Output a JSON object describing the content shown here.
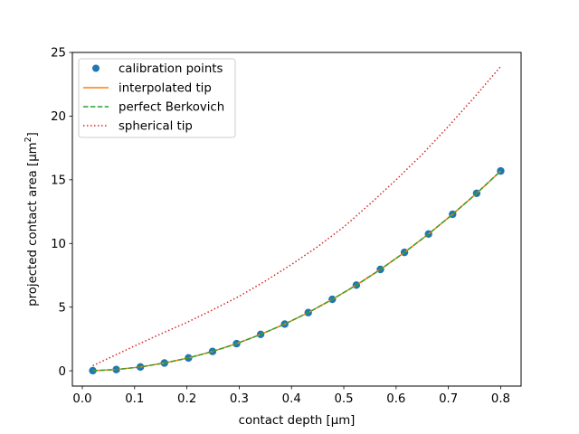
{
  "chart_data": {
    "type": "line",
    "title": "",
    "xlabel": "contact depth [μm]",
    "ylabel_main": "projected contact area [μm",
    "ylabel_sup": "2",
    "ylabel_end": "]",
    "xlim": [
      -0.019,
      0.839
    ],
    "ylim": [
      -1.2,
      25
    ],
    "xticks": [
      0.0,
      0.1,
      0.2,
      0.3,
      0.4,
      0.5,
      0.6,
      0.7,
      0.8
    ],
    "xtick_labels": [
      "0.0",
      "0.1",
      "0.2",
      "0.3",
      "0.4",
      "0.5",
      "0.6",
      "0.7",
      "0.8"
    ],
    "yticks": [
      0,
      5,
      10,
      15,
      20,
      25
    ],
    "ytick_labels": [
      "0",
      "5",
      "10",
      "15",
      "20",
      "25"
    ],
    "grid": false,
    "legend_position": "top-left",
    "series": [
      {
        "name": "calibration points",
        "style": "markers",
        "color": "#1f77b4",
        "x": [
          0.02,
          0.065,
          0.111,
          0.157,
          0.203,
          0.249,
          0.295,
          0.341,
          0.387,
          0.432,
          0.478,
          0.524,
          0.57,
          0.616,
          0.662,
          0.708,
          0.754,
          0.8
        ],
        "y": [
          0.01,
          0.1,
          0.3,
          0.61,
          1.01,
          1.52,
          2.13,
          2.86,
          3.67,
          4.57,
          5.61,
          6.73,
          7.96,
          9.3,
          10.74,
          12.29,
          13.94,
          15.69
        ]
      },
      {
        "name": "interpolated tip",
        "style": "solid",
        "color": "#ff7f0e",
        "x": [
          0.02,
          0.065,
          0.111,
          0.157,
          0.203,
          0.249,
          0.295,
          0.341,
          0.387,
          0.432,
          0.478,
          0.524,
          0.57,
          0.616,
          0.662,
          0.708,
          0.754,
          0.8
        ],
        "y": [
          0.01,
          0.1,
          0.3,
          0.61,
          1.01,
          1.52,
          2.13,
          2.86,
          3.67,
          4.57,
          5.61,
          6.73,
          7.96,
          9.3,
          10.74,
          12.29,
          13.94,
          15.69
        ]
      },
      {
        "name": "perfect Berkovich",
        "style": "dashed",
        "color": "#2ca02c",
        "x": [
          0.02,
          0.065,
          0.111,
          0.157,
          0.203,
          0.249,
          0.295,
          0.341,
          0.387,
          0.432,
          0.478,
          0.524,
          0.57,
          0.616,
          0.662,
          0.708,
          0.754,
          0.8
        ],
        "y": [
          0.01,
          0.1,
          0.3,
          0.61,
          1.01,
          1.52,
          2.13,
          2.86,
          3.67,
          4.57,
          5.61,
          6.73,
          7.96,
          9.3,
          10.74,
          12.29,
          13.94,
          15.69
        ]
      },
      {
        "name": "spherical tip",
        "style": "dotted",
        "color": "#d62728",
        "x": [
          0.02,
          0.1,
          0.15,
          0.2,
          0.25,
          0.3,
          0.35,
          0.4,
          0.45,
          0.5,
          0.55,
          0.6,
          0.65,
          0.7,
          0.75,
          0.8
        ],
        "y": [
          0.4,
          1.95,
          2.9,
          3.8,
          4.8,
          5.85,
          7.05,
          8.35,
          9.75,
          11.3,
          13.1,
          15.0,
          17.0,
          19.2,
          21.5,
          23.9
        ]
      }
    ]
  }
}
